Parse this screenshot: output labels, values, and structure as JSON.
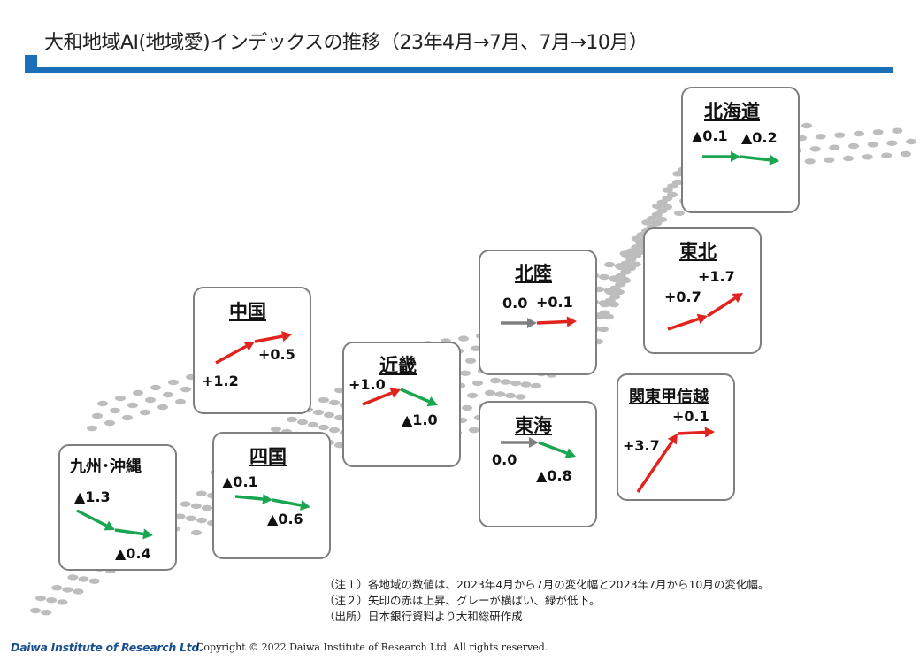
{
  "title": "大和地域AI(地域愛)インデックスの推移（23年4月→7月、7月→10月）",
  "colors": {
    "accent": "#1a6fb8",
    "up": "#e0231c",
    "flat": "#808080",
    "down": "#1aa651"
  },
  "regions": {
    "hokkaido": {
      "name": "北海道",
      "v1": "▲0.1",
      "v2": "▲0.2",
      "t1": "down",
      "t2": "down"
    },
    "tohoku": {
      "name": "東北",
      "v1": "+0.7",
      "v2": "+1.7",
      "t1": "up",
      "t2": "up"
    },
    "hokuriku": {
      "name": "北陸",
      "v1": "0.0",
      "v2": "+0.1",
      "t1": "flat",
      "t2": "up"
    },
    "kanto": {
      "name": "関東甲信越",
      "v1": "+3.7",
      "v2": "+0.1",
      "t1": "up",
      "t2": "up"
    },
    "tokai": {
      "name": "東海",
      "v1": "0.0",
      "v2": "▲0.8",
      "t1": "flat",
      "t2": "down"
    },
    "kinki": {
      "name": "近畿",
      "v1": "+1.0",
      "v2": "▲1.0",
      "t1": "up",
      "t2": "down"
    },
    "chugoku": {
      "name": "中国",
      "v1": "+1.2",
      "v2": "+0.5",
      "t1": "up",
      "t2": "up"
    },
    "shikoku": {
      "name": "四国",
      "v1": "▲0.1",
      "v2": "▲0.6",
      "t1": "down",
      "t2": "down"
    },
    "kyushu": {
      "name": "九州･沖縄",
      "v1": "▲1.3",
      "v2": "▲0.4",
      "t1": "down",
      "t2": "down"
    }
  },
  "notes": [
    "（注１）各地域の数値は、2023年4月から7月の変化幅と2023年7月から10月の変化幅。",
    "（注２）矢印の赤は上昇、グレーが横ばい、緑が低下。",
    "（出所）日本銀行資料より大和総研作成"
  ],
  "footer": {
    "logo": "Daiwa Institute of Research Ltd.",
    "copyright": "Copyright © 2022  Daiwa  Institute of Research Ltd.  All  rights reserved."
  }
}
